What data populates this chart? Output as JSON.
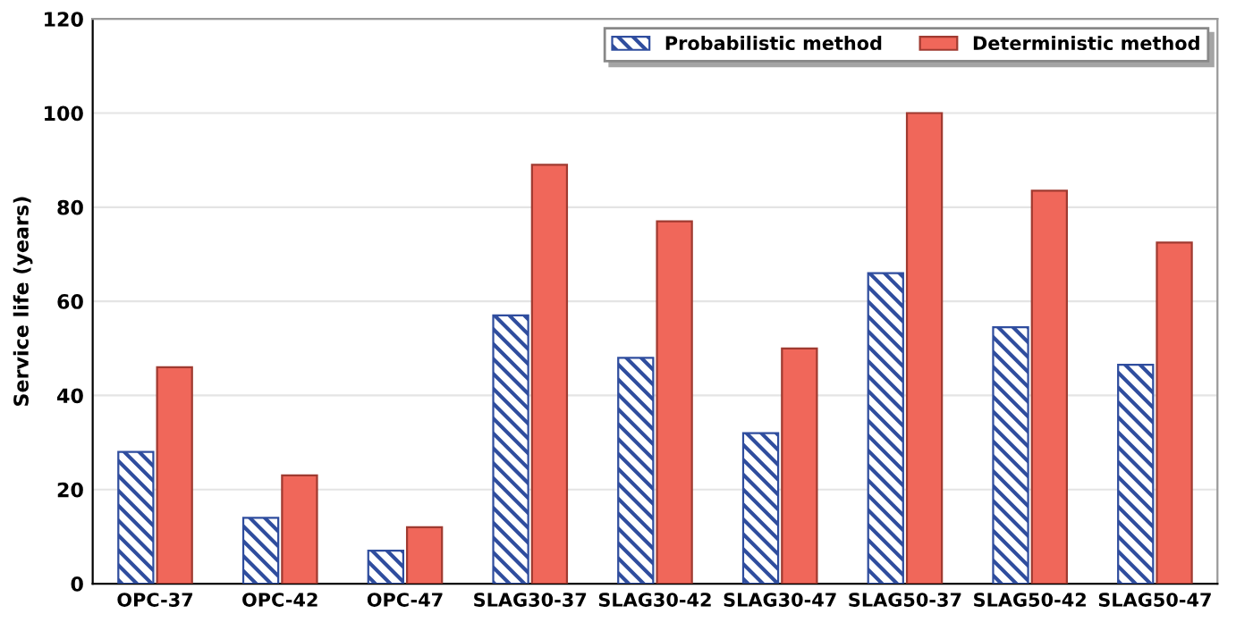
{
  "chart_data": {
    "type": "bar",
    "ylabel": "Service life (years)",
    "categories": [
      "OPC-37",
      "OPC-42",
      "OPC-47",
      "SLAG30-37",
      "SLAG30-42",
      "SLAG30-47",
      "SLAG50-37",
      "SLAG50-42",
      "SLAG50-47"
    ],
    "series": [
      {
        "name": "Probabilistic method",
        "color": "#2f4d9e",
        "values": [
          28,
          14,
          7,
          57,
          48,
          32,
          66,
          54.5,
          46.5
        ]
      },
      {
        "name": "Deterministic method",
        "color": "#f0675a",
        "values": [
          46,
          23,
          12,
          89,
          77,
          50,
          100,
          83.5,
          72.5
        ]
      }
    ],
    "ylim": [
      0,
      120
    ],
    "yticks": [
      0,
      20,
      40,
      60,
      80,
      100,
      120
    ],
    "grid": "y",
    "legend": "top right"
  }
}
